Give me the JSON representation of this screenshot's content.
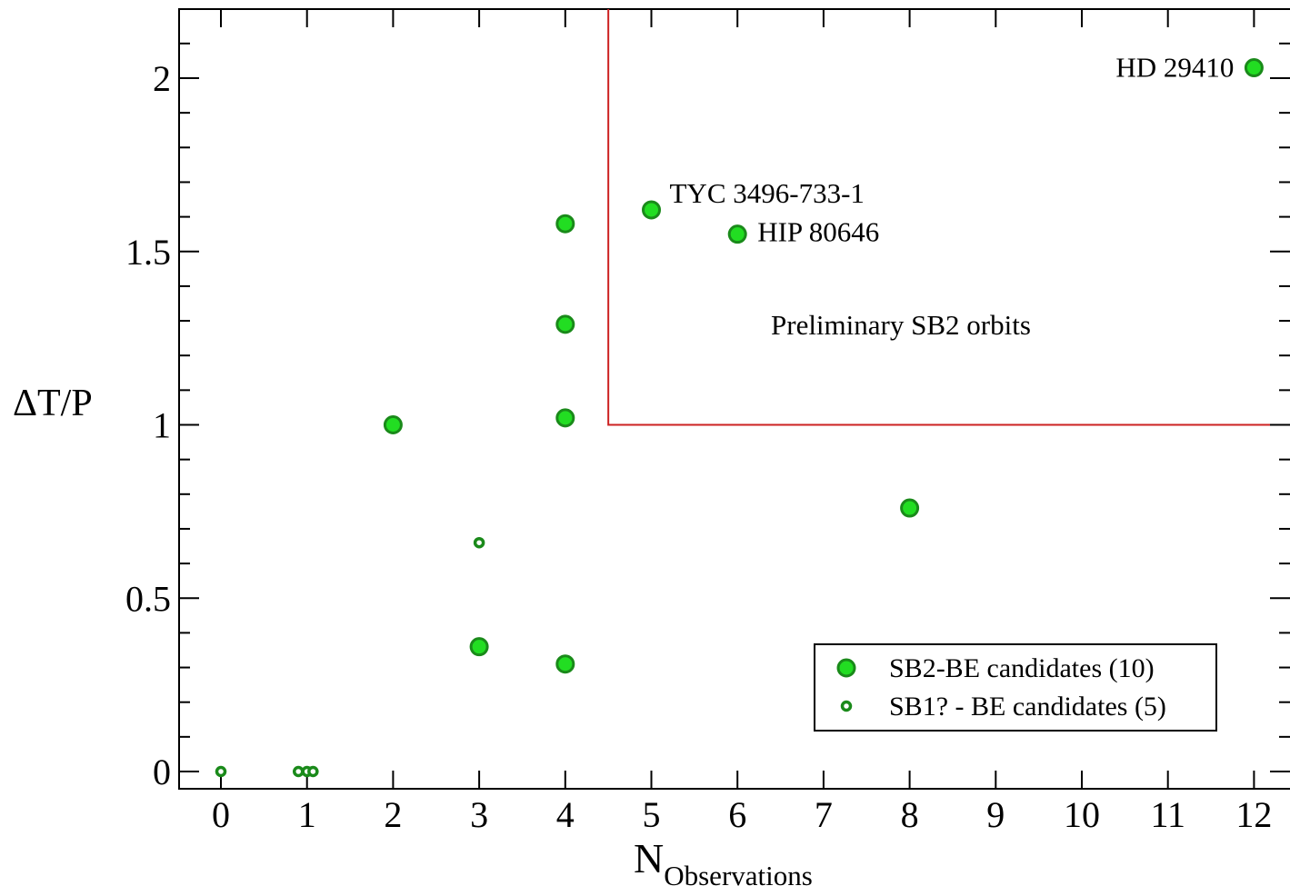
{
  "chart_data": {
    "type": "scatter",
    "title": "",
    "xlabel": "N",
    "xlabel_subscript": "Observations",
    "ylabel": "ΔT/P",
    "xlim": [
      -0.5,
      12.5
    ],
    "ylim": [
      -0.05,
      2.2
    ],
    "x_ticks": [
      "0",
      "1",
      "2",
      "3",
      "4",
      "5",
      "6",
      "7",
      "8",
      "9",
      "10",
      "11",
      "12"
    ],
    "y_ticks": [
      "0",
      "0.5",
      "1",
      "1.5",
      "2"
    ],
    "grid": false,
    "legend_position": "bottom-right",
    "series": [
      {
        "name": "SB2-BE candidates (10)",
        "marker": "large-circle",
        "fill": "#22dd22",
        "stroke": "#1a8a1a",
        "points": [
          {
            "x": 2,
            "y": 1.0
          },
          {
            "x": 3,
            "y": 0.36
          },
          {
            "x": 4,
            "y": 1.58
          },
          {
            "x": 4,
            "y": 1.29
          },
          {
            "x": 4,
            "y": 1.02
          },
          {
            "x": 4,
            "y": 0.31
          },
          {
            "x": 5,
            "y": 1.62
          },
          {
            "x": 6,
            "y": 1.55
          },
          {
            "x": 8,
            "y": 0.76
          },
          {
            "x": 12,
            "y": 2.03
          }
        ]
      },
      {
        "name": "SB1? - BE candidates (5)",
        "marker": "small-circle",
        "fill": "#22dd22",
        "stroke": "#1a8a1a",
        "points": [
          {
            "x": 0,
            "y": 0.0
          },
          {
            "x": 0.9,
            "y": 0.0
          },
          {
            "x": 1.0,
            "y": 0.0
          },
          {
            "x": 1.07,
            "y": 0.0
          },
          {
            "x": 3,
            "y": 0.66
          }
        ]
      }
    ],
    "annotations": [
      {
        "text": "HD 29410",
        "x": 12,
        "y": 2.03,
        "side": "left"
      },
      {
        "text": "TYC 3496-733-1",
        "x": 5,
        "y": 1.62,
        "side": "right-up"
      },
      {
        "text": "HIP 80646",
        "x": 6,
        "y": 1.55,
        "side": "right"
      }
    ],
    "region": {
      "label": "Preliminary SB2 orbits",
      "x_min": 4.5,
      "y_min": 1.0,
      "color": "#cc2222"
    }
  }
}
